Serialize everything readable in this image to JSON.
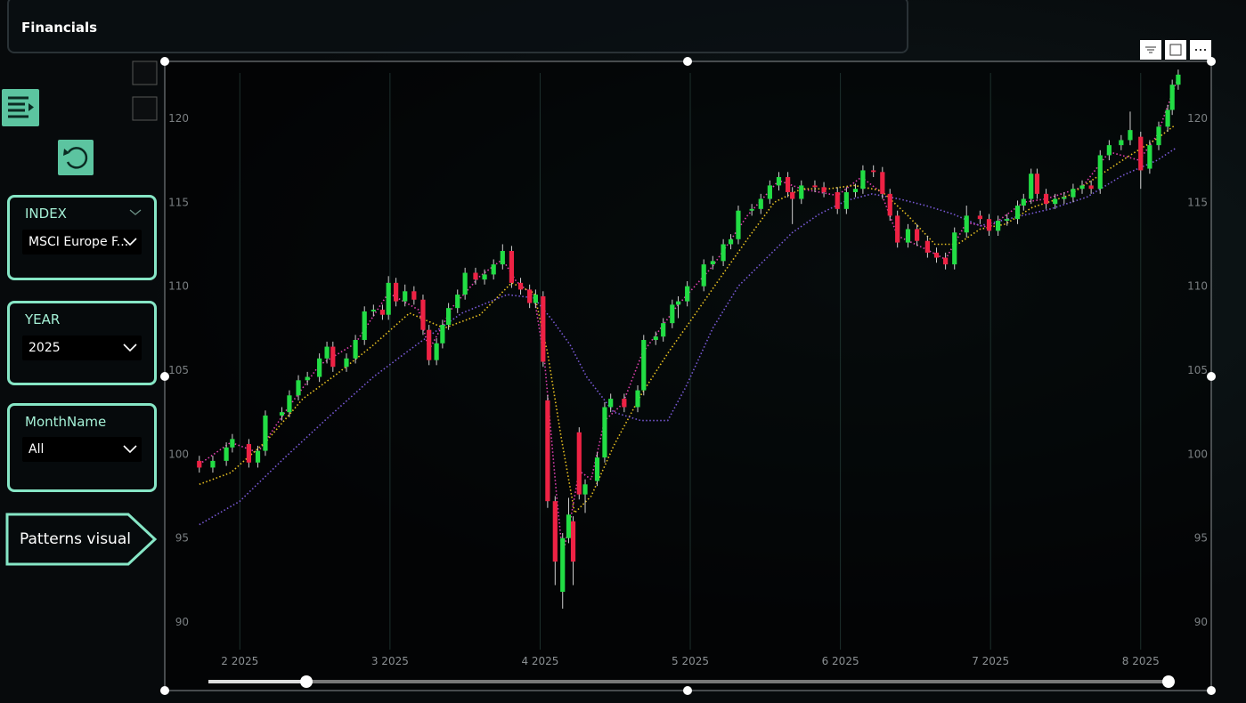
{
  "header": {
    "title": "Financials"
  },
  "filters": [
    {
      "label": "INDEX",
      "value": "MSCI Europe F..."
    },
    {
      "label": "YEAR",
      "value": "2025"
    },
    {
      "label": "MonthName",
      "value": "All"
    }
  ],
  "nav_button": "Patterns visual",
  "chart_data": {
    "type": "candlestick",
    "x": [
      1.73,
      1.82,
      1.91,
      1.95,
      2.06,
      2.12,
      2.17,
      2.28,
      2.33,
      2.39,
      2.45,
      2.53,
      2.58,
      2.62,
      2.71,
      2.77,
      2.83,
      2.89,
      2.95,
      2.99,
      3.04,
      3.1,
      3.16,
      3.22,
      3.26,
      3.31,
      3.35,
      3.39,
      3.45,
      3.5,
      3.57,
      3.63,
      3.69,
      3.75,
      3.81,
      3.87,
      3.93,
      3.97,
      4.02,
      4.05,
      4.1,
      4.15,
      4.19,
      4.22,
      4.26,
      4.3,
      4.38,
      4.43,
      4.47,
      4.56,
      4.65,
      4.69,
      4.77,
      4.82,
      4.88,
      4.92,
      4.98,
      5.09,
      5.15,
      5.22,
      5.27,
      5.32,
      5.41,
      5.47,
      5.53,
      5.59,
      5.65,
      5.68,
      5.74,
      5.83,
      5.89,
      5.98,
      6.04,
      6.1,
      6.15,
      6.22,
      6.28,
      6.33,
      6.38,
      6.45,
      6.51,
      6.58,
      6.64,
      6.7,
      6.76,
      6.84,
      6.93,
      6.99,
      7.05,
      7.11,
      7.18,
      7.22,
      7.27,
      7.31,
      7.37,
      7.43,
      7.49,
      7.55,
      7.61,
      7.67,
      7.73,
      7.79,
      7.87,
      7.93,
      8.0,
      8.06,
      8.12,
      8.18,
      8.21,
      8.25
    ],
    "open": [
      99.6,
      99.2,
      99.6,
      100.4,
      100.6,
      99.5,
      100.2,
      102.3,
      102.5,
      103.5,
      104.4,
      104.6,
      105.7,
      106.4,
      105.2,
      105.7,
      106.8,
      108.5,
      108.6,
      108.3,
      110.2,
      109.1,
      109.7,
      109.2,
      107.4,
      105.6,
      106.6,
      107.7,
      108.7,
      109.5,
      110.8,
      110.4,
      110.7,
      111.3,
      112.1,
      110.2,
      109.8,
      109.0,
      109.4,
      103.2,
      97.2,
      91.8,
      95.0,
      96.0,
      101.3,
      97.6,
      98.4,
      99.8,
      102.8,
      103.3,
      102.8,
      103.8,
      106.8,
      107.0,
      107.8,
      108.9,
      109.1,
      110.0,
      111.3,
      111.5,
      112.5,
      112.8,
      114.5,
      114.6,
      115.2,
      116.0,
      116.5,
      115.6,
      115.2,
      116.0,
      115.9,
      115.6,
      114.6,
      115.6,
      115.8,
      116.9,
      116.8,
      115.5,
      114.2,
      112.6,
      113.4,
      112.7,
      112.0,
      111.7,
      111.3,
      113.2,
      114.2,
      114.0,
      113.3,
      113.9,
      114.0,
      114.8,
      115.2,
      116.7,
      115.5,
      114.9,
      115.2,
      115.3,
      115.8,
      116.0,
      115.8,
      117.8,
      118.4,
      118.7,
      118.9,
      117.0,
      118.4,
      119.5,
      120.5,
      122.0
    ],
    "high": [
      99.9,
      99.9,
      100.7,
      101.2,
      100.9,
      100.5,
      102.6,
      102.8,
      103.8,
      104.7,
      104.9,
      106.0,
      106.7,
      106.7,
      106.0,
      107.1,
      108.8,
      108.9,
      108.9,
      110.6,
      110.5,
      110.1,
      110.0,
      109.5,
      107.7,
      106.9,
      108.0,
      109.0,
      109.8,
      111.1,
      111.1,
      111.0,
      111.6,
      112.5,
      112.4,
      110.5,
      110.1,
      109.8,
      109.7,
      103.5,
      97.5,
      95.3,
      97.4,
      96.3,
      101.6,
      98.5,
      100.1,
      103.1,
      103.6,
      103.6,
      104.1,
      107.1,
      107.3,
      108.1,
      109.2,
      109.4,
      110.3,
      111.6,
      111.8,
      112.8,
      113.1,
      114.8,
      114.9,
      115.5,
      116.3,
      116.8,
      116.8,
      115.9,
      116.3,
      116.3,
      116.2,
      115.9,
      115.9,
      116.1,
      117.2,
      117.2,
      117.1,
      115.8,
      114.5,
      113.7,
      113.7,
      113.0,
      112.3,
      112.0,
      113.5,
      114.8,
      114.5,
      114.3,
      114.2,
      114.3,
      115.1,
      115.5,
      117.0,
      117.0,
      115.8,
      115.5,
      115.6,
      116.1,
      116.3,
      116.3,
      118.1,
      118.7,
      119.0,
      120.4,
      119.2,
      118.7,
      119.8,
      120.8,
      122.3,
      122.9
    ],
    "low": [
      98.9,
      98.9,
      99.3,
      100.1,
      99.2,
      99.2,
      99.9,
      102.0,
      102.2,
      103.2,
      104.1,
      104.3,
      105.4,
      104.9,
      104.9,
      105.4,
      106.5,
      108.2,
      108.0,
      108.0,
      108.8,
      108.8,
      108.9,
      107.1,
      105.3,
      105.3,
      106.3,
      107.4,
      108.4,
      109.2,
      110.1,
      110.1,
      110.4,
      111.0,
      109.9,
      109.5,
      108.7,
      108.7,
      105.2,
      96.8,
      92.2,
      90.8,
      94.7,
      92.2,
      97.3,
      96.5,
      98.1,
      99.5,
      102.5,
      102.5,
      102.5,
      103.5,
      106.5,
      106.7,
      107.5,
      108.1,
      108.8,
      109.7,
      111.0,
      111.2,
      112.2,
      112.5,
      114.2,
      114.3,
      114.9,
      115.7,
      115.3,
      113.7,
      114.9,
      115.6,
      115.3,
      114.3,
      114.3,
      115.3,
      115.5,
      116.5,
      115.2,
      113.9,
      112.3,
      112.3,
      112.4,
      111.7,
      111.4,
      111.0,
      111.0,
      112.9,
      113.7,
      113.0,
      113.0,
      113.6,
      113.7,
      114.5,
      114.9,
      115.2,
      114.6,
      114.6,
      114.9,
      115.0,
      115.5,
      115.5,
      115.5,
      117.5,
      118.1,
      118.4,
      115.8,
      116.7,
      118.1,
      119.2,
      120.2,
      121.7
    ],
    "close": [
      99.2,
      99.6,
      100.4,
      100.9,
      99.5,
      100.2,
      102.3,
      102.5,
      103.5,
      104.4,
      104.6,
      105.7,
      106.4,
      105.2,
      105.7,
      106.8,
      108.5,
      108.6,
      108.3,
      110.2,
      109.1,
      109.7,
      109.2,
      107.4,
      105.6,
      106.6,
      107.7,
      108.7,
      109.5,
      110.8,
      110.4,
      110.7,
      111.3,
      112.1,
      110.2,
      109.8,
      109.0,
      109.5,
      105.5,
      97.2,
      93.6,
      95.0,
      96.4,
      93.6,
      97.6,
      98.2,
      99.8,
      102.8,
      103.3,
      102.8,
      103.8,
      106.8,
      107.0,
      107.8,
      108.9,
      109.1,
      110.0,
      111.3,
      111.5,
      112.5,
      112.8,
      114.5,
      114.6,
      115.2,
      116.0,
      116.5,
      115.6,
      115.2,
      116.0,
      115.9,
      115.6,
      114.6,
      115.6,
      115.8,
      116.9,
      116.8,
      115.5,
      114.2,
      112.6,
      113.4,
      112.7,
      112.0,
      111.7,
      111.3,
      113.2,
      114.2,
      114.0,
      113.3,
      113.9,
      114.0,
      114.8,
      115.2,
      116.7,
      115.5,
      114.9,
      115.2,
      115.3,
      115.8,
      116.0,
      115.8,
      117.8,
      118.4,
      118.7,
      119.3,
      116.9,
      118.4,
      119.5,
      120.5,
      122.0,
      122.6
    ],
    "up_color": "#22dd44",
    "down_color": "#ee2244",
    "wick_color": "#cfcfcf",
    "lines": [
      {
        "color": "#e040b0",
        "x": [
          1.73,
          1.94,
          2.12,
          2.3,
          2.53,
          2.77,
          2.99,
          3.19,
          3.26,
          3.42,
          3.6,
          3.75,
          3.84,
          3.96,
          4.03,
          4.11,
          4.15,
          4.2,
          4.26,
          4.34,
          4.43,
          4.55,
          4.68,
          4.91,
          5.15,
          5.38,
          5.59,
          5.74,
          5.98,
          6.14,
          6.27,
          6.38,
          6.57,
          6.7,
          6.84,
          6.99,
          7.22,
          7.37,
          7.61,
          7.79,
          7.99,
          8.11,
          8.24
        ],
        "values": [
          99.4,
          100.7,
          100.1,
          102.5,
          105.3,
          106.6,
          109.6,
          108.6,
          106.2,
          108.8,
          110.6,
          111.6,
          110.3,
          109.4,
          105.5,
          97.5,
          94.0,
          96.0,
          99.0,
          98.5,
          102.0,
          103.0,
          106.0,
          108.8,
          111.2,
          114.2,
          116.3,
          115.8,
          115.4,
          116.5,
          115.6,
          113.0,
          112.2,
          111.6,
          113.8,
          113.5,
          115.0,
          115.2,
          115.9,
          118.0,
          117.5,
          119.0,
          122.2
        ]
      },
      {
        "color": "#e8c020",
        "x": [
          1.73,
          1.94,
          2.18,
          2.42,
          2.65,
          2.89,
          3.13,
          3.36,
          3.6,
          3.81,
          3.96,
          4.05,
          4.14,
          4.23,
          4.34,
          4.49,
          4.67,
          4.85,
          5.03,
          5.2,
          5.38,
          5.56,
          5.74,
          5.92,
          6.09,
          6.27,
          6.45,
          6.63,
          6.78,
          6.93,
          7.1,
          7.28,
          7.52,
          7.76,
          7.93,
          8.11,
          8.23
        ],
        "values": [
          98.2,
          98.9,
          100.8,
          103.3,
          104.8,
          106.5,
          108.4,
          107.5,
          108.3,
          110.2,
          109.6,
          106.0,
          101.0,
          96.5,
          97.5,
          100.5,
          103.5,
          106.0,
          108.3,
          110.5,
          112.8,
          115.0,
          115.8,
          115.8,
          116.0,
          115.7,
          114.2,
          112.5,
          112.5,
          113.4,
          113.7,
          114.7,
          115.4,
          116.8,
          117.8,
          118.8,
          119.6
        ]
      },
      {
        "color": "#7a5ad8",
        "x": [
          1.73,
          2.0,
          2.3,
          2.59,
          2.89,
          3.19,
          3.48,
          3.78,
          3.96,
          4.08,
          4.2,
          4.31,
          4.49,
          4.67,
          4.85,
          4.97,
          5.15,
          5.32,
          5.5,
          5.68,
          5.86,
          6.04,
          6.21,
          6.39,
          6.57,
          6.75,
          6.93,
          7.16,
          7.4,
          7.64,
          7.88,
          8.11,
          8.23
        ],
        "values": [
          95.8,
          97.2,
          99.8,
          102.2,
          104.6,
          106.6,
          108.4,
          109.5,
          109.3,
          108.0,
          106.5,
          104.6,
          102.5,
          102.0,
          102.0,
          104.0,
          107.5,
          110.0,
          111.6,
          113.2,
          114.3,
          115.1,
          115.5,
          115.2,
          114.8,
          114.3,
          113.6,
          114.1,
          114.6,
          115.3,
          116.6,
          117.5,
          118.2
        ]
      }
    ],
    "xlim": [
      1.5,
      8.47
    ],
    "xticks": [
      {
        "value": 2,
        "label": "2 2025"
      },
      {
        "value": 3,
        "label": "3 2025"
      },
      {
        "value": 4,
        "label": "4 2025"
      },
      {
        "value": 5,
        "label": "5 2025"
      },
      {
        "value": 6,
        "label": "6 2025"
      },
      {
        "value": 7,
        "label": "7 2025"
      },
      {
        "value": 8,
        "label": "8 2025"
      }
    ],
    "ylim": [
      88.36,
      123.07
    ],
    "yticks": [
      90,
      95,
      100,
      105,
      110,
      115,
      120
    ],
    "grid": true
  }
}
